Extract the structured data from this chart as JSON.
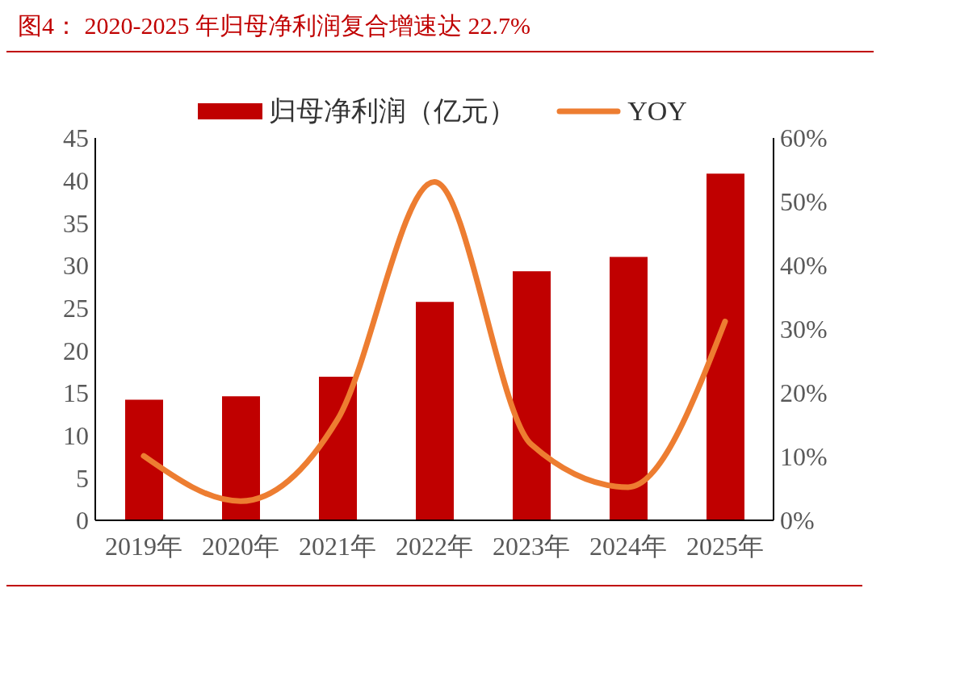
{
  "chart_data": {
    "type": "bar",
    "title": "图4：  2020-2025 年归母净利润复合增速达 22.7%",
    "categories": [
      "2019年",
      "2020年",
      "2021年",
      "2022年",
      "2023年",
      "2024年",
      "2025年"
    ],
    "series": [
      {
        "name": "归母净利润（亿元）",
        "color": "#c00000",
        "values": [
          14.2,
          14.6,
          16.9,
          25.7,
          29.3,
          31.0,
          40.8
        ]
      },
      {
        "name": "YOY",
        "type": "line",
        "axis": "y2",
        "color": "#ed7d31",
        "values": [
          10.1,
          3.0,
          15.8,
          53.1,
          11.9,
          5.2,
          31.2
        ]
      }
    ],
    "ylim": [
      0,
      45
    ],
    "yticks": [
      0,
      5,
      10,
      15,
      20,
      25,
      30,
      35,
      40,
      45
    ],
    "y2lim": [
      0,
      60
    ],
    "y2ticks": [
      {
        "value": 0,
        "label": "0%"
      },
      {
        "value": 10,
        "label": "10%"
      },
      {
        "value": 20,
        "label": "20%"
      },
      {
        "value": 30,
        "label": "30%"
      },
      {
        "value": 40,
        "label": "40%"
      },
      {
        "value": 50,
        "label": "50%"
      },
      {
        "value": 60,
        "label": "60%"
      }
    ],
    "grid": false,
    "legend": "top",
    "marker": "none"
  }
}
